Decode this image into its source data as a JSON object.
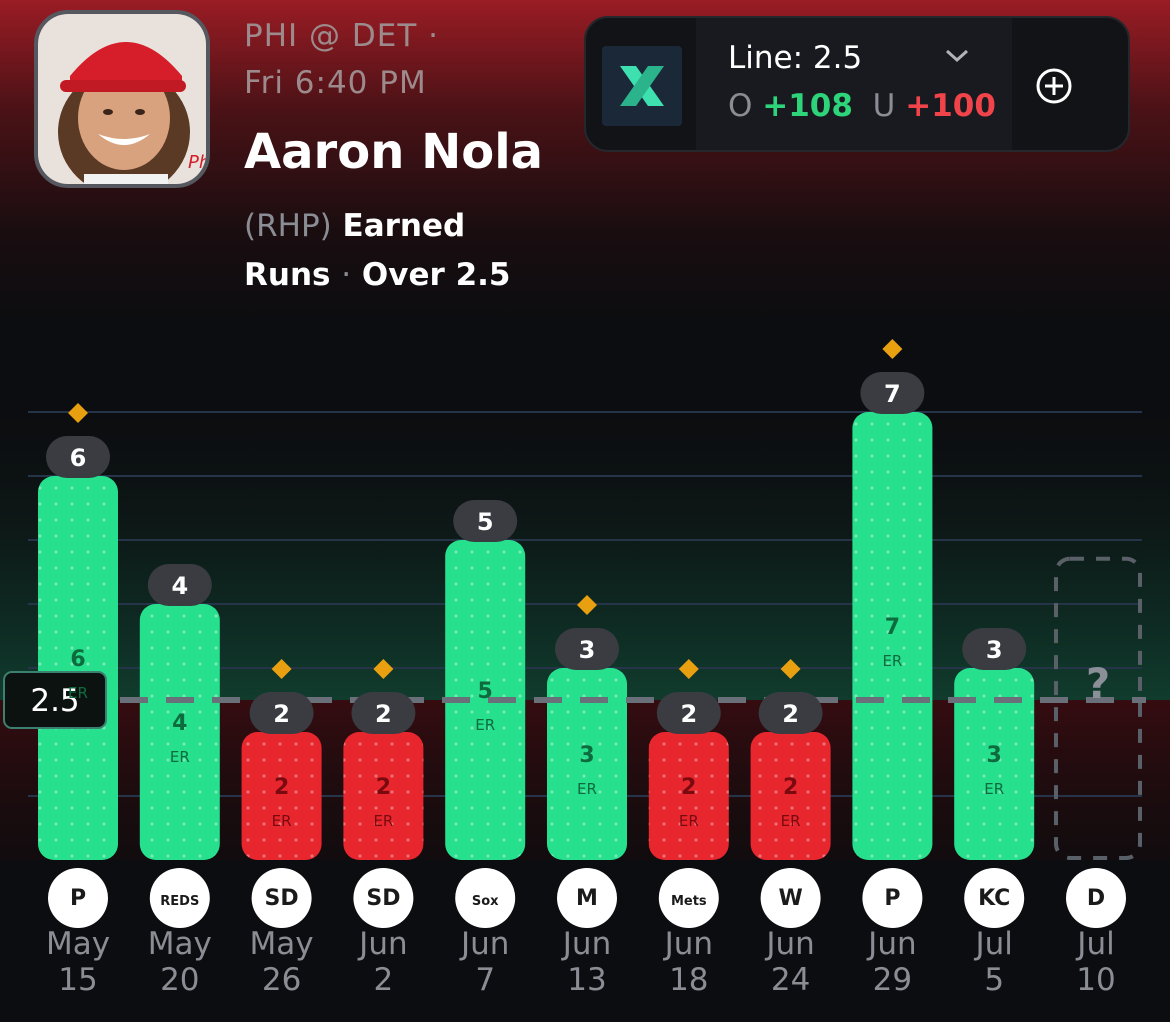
{
  "header": {
    "matchup": "PHI @ DET ·",
    "game_time": "Fri 6:40 PM",
    "player_name": "Aaron Nola",
    "position": "(RHP)",
    "stat_word1": "Earned",
    "stat_word2": "Runs",
    "separator": "·",
    "over_text": "Over 2.5"
  },
  "line_panel": {
    "line_label": "Line: 2.5",
    "over_prefix": "O",
    "over_odds": "+108",
    "under_prefix": "U",
    "under_odds": "+100"
  },
  "chart_data": {
    "type": "bar",
    "line": 2.5,
    "line_label": "2.5",
    "unit_label": "ER",
    "upcoming_label": "?",
    "categories": [
      "May 15",
      "May 20",
      "May 26",
      "Jun 2",
      "Jun 7",
      "Jun 13",
      "Jun 18",
      "Jun 24",
      "Jun 29",
      "Jul 5",
      "Jul 10"
    ],
    "dates": [
      [
        "May",
        "15"
      ],
      [
        "May",
        "20"
      ],
      [
        "May",
        "26"
      ],
      [
        "Jun",
        "2"
      ],
      [
        "Jun",
        "7"
      ],
      [
        "Jun",
        "13"
      ],
      [
        "Jun",
        "18"
      ],
      [
        "Jun",
        "24"
      ],
      [
        "Jun",
        "29"
      ],
      [
        "Jul",
        "5"
      ],
      [
        "Jul",
        "10"
      ]
    ],
    "values": [
      6,
      4,
      2,
      2,
      5,
      3,
      2,
      2,
      7,
      3,
      null
    ],
    "markers": [
      true,
      false,
      true,
      true,
      false,
      true,
      true,
      true,
      true,
      false,
      false
    ],
    "opponents": [
      "Pirates",
      "Reds",
      "Padres",
      "Padres",
      "White Sox",
      "Brewers",
      "Mets",
      "Nationals",
      "Pirates",
      "Royals",
      "Tigers"
    ],
    "opponent_logo_text": [
      "P",
      "REDS",
      "SD",
      "SD",
      "Sox",
      "M",
      "Mets",
      "W",
      "P",
      "KC",
      "D"
    ],
    "colors": {
      "over": "#27e08e",
      "under": "#e8262e",
      "marker": "#e8a010"
    }
  }
}
